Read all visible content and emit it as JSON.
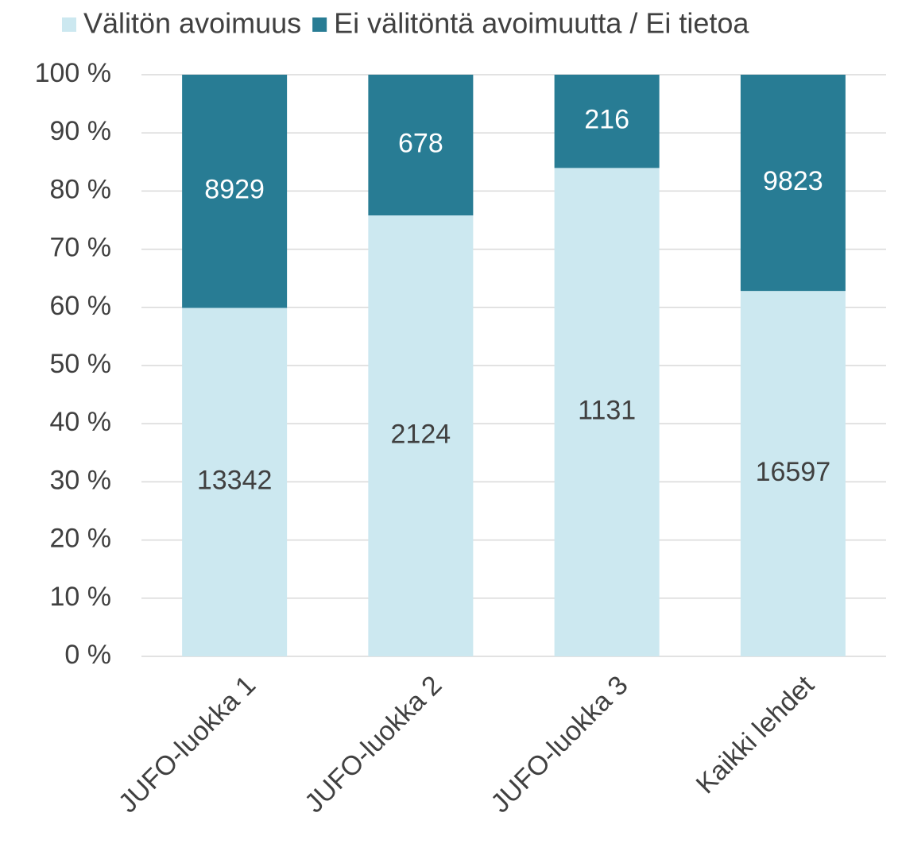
{
  "chart_data": {
    "type": "bar",
    "stacking": "percent",
    "categories": [
      "JUFO-luokka 1",
      "JUFO-luokka 2",
      "JUFO-luokka 3",
      "Kaikki lehdet"
    ],
    "series": [
      {
        "name": "Välitön avoimuus",
        "color": "#cce8f0",
        "values": [
          13342,
          2124,
          1131,
          16597
        ]
      },
      {
        "name": "Ei välitöntä avoimuutta / Ei tietoa",
        "color": "#287c94",
        "values": [
          8929,
          678,
          216,
          9823
        ]
      }
    ],
    "ylim": [
      0,
      100
    ],
    "yticks": [
      {
        "value": 0,
        "label": "0 %"
      },
      {
        "value": 10,
        "label": "10 %"
      },
      {
        "value": 20,
        "label": "20 %"
      },
      {
        "value": 30,
        "label": "30 %"
      },
      {
        "value": 40,
        "label": "40 %"
      },
      {
        "value": 50,
        "label": "50 %"
      },
      {
        "value": 60,
        "label": "60 %"
      },
      {
        "value": 70,
        "label": "70 %"
      },
      {
        "value": 80,
        "label": "80 %"
      },
      {
        "value": 90,
        "label": "90 %"
      },
      {
        "value": 100,
        "label": "100 %"
      }
    ],
    "grid": true,
    "legend": "top"
  }
}
